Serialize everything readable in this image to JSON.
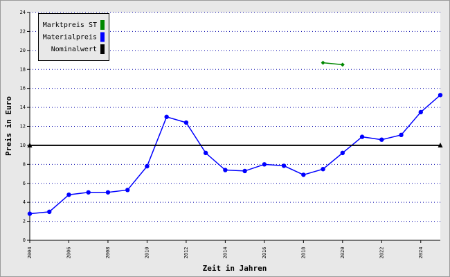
{
  "chart_data": {
    "type": "line",
    "x_label": "Zeit in Jahren",
    "y_label": "Preis in Euro",
    "x": [
      2004,
      2005,
      2006,
      2007,
      2008,
      2009,
      2010,
      2011,
      2012,
      2013,
      2014,
      2015,
      2016,
      2017,
      2018,
      2019,
      2020,
      2021,
      2022,
      2023,
      2024,
      2025
    ],
    "series": [
      {
        "name": "Marktpreis ST",
        "color": "#008800",
        "marker": "diamond",
        "values": [
          null,
          null,
          null,
          null,
          null,
          null,
          null,
          null,
          null,
          null,
          null,
          null,
          null,
          null,
          null,
          18.7,
          18.5,
          null,
          null,
          null,
          null,
          null
        ]
      },
      {
        "name": "Materialpreis",
        "color": "#0000ff",
        "marker": "circle",
        "values": [
          2.8,
          3.0,
          4.8,
          5.05,
          5.05,
          5.3,
          7.8,
          13.0,
          12.4,
          9.2,
          7.4,
          7.3,
          8.0,
          7.85,
          6.9,
          7.5,
          9.2,
          10.9,
          10.6,
          11.1,
          13.5,
          15.3
        ]
      },
      {
        "name": "Nominalwert",
        "color": "#000000",
        "marker": "triangle",
        "values": [
          10,
          10,
          10,
          10,
          10,
          10,
          10,
          10,
          10,
          10,
          10,
          10,
          10,
          10,
          10,
          10,
          10,
          10,
          10,
          10,
          10,
          10
        ]
      }
    ],
    "xlim": [
      2004,
      2025
    ],
    "xticks": [
      2004,
      2006,
      2008,
      2010,
      2012,
      2014,
      2016,
      2018,
      2020,
      2022,
      2024
    ],
    "ylim": [
      0,
      24
    ],
    "yticks": [
      0,
      2,
      4,
      6,
      8,
      10,
      12,
      14,
      16,
      18,
      20,
      22,
      24
    ],
    "grid": true,
    "legend": "top-left"
  }
}
